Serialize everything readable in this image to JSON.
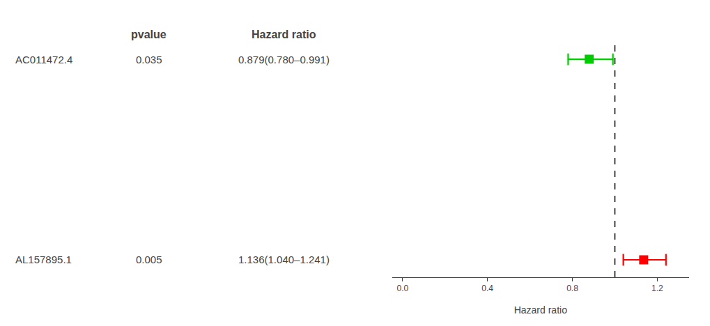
{
  "chart_data": {
    "type": "forest",
    "xlabel": "Hazard ratio",
    "categories": [
      "AC011472.4",
      "AL157895.1"
    ],
    "values": [
      0.879,
      1.136
    ],
    "ci_low": [
      0.78,
      1.04
    ],
    "ci_high": [
      0.991,
      1.241
    ],
    "colors": [
      "#00cc00",
      "#ff0000"
    ],
    "marker": "square",
    "columns": [
      {
        "header": "pvalue",
        "values": [
          "0.035",
          "0.005"
        ]
      },
      {
        "header": "Hazard ratio",
        "values": [
          "0.879(0.780–0.991)",
          "1.136(1.040–1.241)"
        ]
      }
    ],
    "reference_x": 1.0,
    "xlim": [
      -0.05,
      1.35
    ],
    "xticks": [
      {
        "value": 0,
        "label": "0.0"
      },
      0.4,
      0.8,
      1.2
    ],
    "grid": false,
    "tick_labels": "x"
  }
}
